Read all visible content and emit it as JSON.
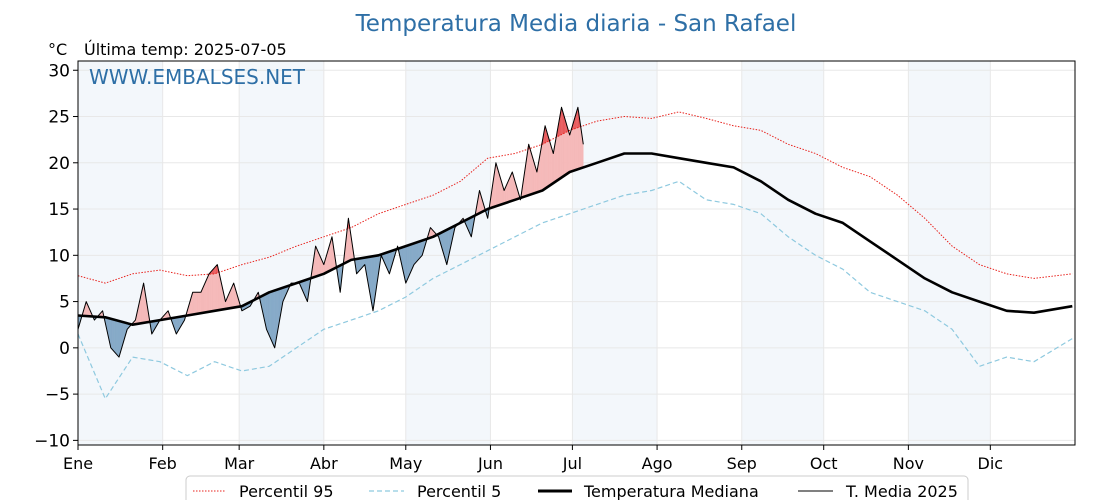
{
  "chart_data": {
    "type": "line",
    "title": "Temperatura Media diaria - San Rafael",
    "unit_label": "°C",
    "last_temp_label": "Última temp: 2025-07-05",
    "watermark": "WWW.EMBALSES.NET",
    "ylim": [
      -10.5,
      31
    ],
    "yticks": [
      "30",
      "25",
      "20",
      "15",
      "10",
      "5",
      "0",
      "−5",
      "−10"
    ],
    "ytick_values": [
      30,
      25,
      20,
      15,
      10,
      5,
      0,
      -5,
      -10
    ],
    "months": [
      "Ene",
      "Feb",
      "Mar",
      "Abr",
      "May",
      "Jun",
      "Jul",
      "Ago",
      "Sep",
      "Oct",
      "Nov",
      "Dic"
    ],
    "month_start_days": [
      0,
      31,
      59,
      90,
      120,
      151,
      181,
      212,
      243,
      273,
      304,
      334
    ],
    "grid": true,
    "legend_position": "bottom",
    "series": [
      {
        "name": "Percentil 95",
        "color": "#e8231e",
        "style": "dotted",
        "x": [
          0,
          10,
          20,
          30,
          40,
          50,
          60,
          70,
          80,
          90,
          100,
          110,
          120,
          130,
          140,
          150,
          160,
          170,
          180,
          190,
          200,
          210,
          220,
          230,
          240,
          250,
          260,
          270,
          280,
          290,
          300,
          310,
          320,
          330,
          340,
          350,
          364
        ],
        "values": [
          7.8,
          7,
          8,
          8.4,
          7.8,
          8,
          9,
          9.8,
          11,
          12,
          13,
          14.5,
          15.5,
          16.5,
          18,
          20.5,
          21,
          22,
          23.5,
          24.5,
          25,
          24.8,
          25.5,
          24.8,
          24,
          23.5,
          22,
          21,
          19.5,
          18.5,
          16.5,
          14,
          11,
          9,
          8,
          7.5,
          8
        ]
      },
      {
        "name": "Percentil 5",
        "color": "#8ec9df",
        "style": "dashed",
        "x": [
          0,
          10,
          20,
          30,
          40,
          50,
          60,
          70,
          80,
          90,
          100,
          110,
          120,
          130,
          140,
          150,
          160,
          170,
          180,
          190,
          200,
          210,
          220,
          230,
          240,
          250,
          260,
          270,
          280,
          290,
          300,
          310,
          320,
          330,
          340,
          350,
          364
        ],
        "values": [
          1.5,
          -5.5,
          -1,
          -1.5,
          -3,
          -1.5,
          -2.5,
          -2,
          0,
          2,
          3,
          4,
          5.5,
          7.5,
          9,
          10.5,
          12,
          13.5,
          14.5,
          15.5,
          16.5,
          17,
          18,
          16,
          15.5,
          14.5,
          12,
          10,
          8.5,
          6,
          5,
          4,
          2,
          -2,
          -1,
          -1.5,
          1
        ]
      },
      {
        "name": "Temperatura Mediana",
        "color": "#000000",
        "style": "solid-thick",
        "x": [
          0,
          10,
          20,
          30,
          40,
          50,
          60,
          70,
          80,
          90,
          100,
          110,
          120,
          130,
          140,
          150,
          160,
          170,
          180,
          190,
          200,
          210,
          220,
          230,
          240,
          250,
          260,
          270,
          280,
          290,
          300,
          310,
          320,
          330,
          340,
          350,
          364
        ],
        "values": [
          3.5,
          3.3,
          2.5,
          3,
          3.5,
          4,
          4.5,
          6,
          7,
          8,
          9.5,
          10,
          11,
          12,
          13.5,
          15,
          16,
          17,
          19,
          20,
          21,
          21,
          20.5,
          20,
          19.5,
          18,
          16,
          14.5,
          13.5,
          11.5,
          9.5,
          7.5,
          6,
          5,
          4,
          3.8,
          4.5
        ]
      },
      {
        "name": "T. Media 2025",
        "color": "#000000",
        "style": "solid-thin",
        "x": [
          0,
          3,
          6,
          9,
          12,
          15,
          18,
          21,
          24,
          27,
          30,
          33,
          36,
          39,
          42,
          45,
          48,
          51,
          54,
          57,
          60,
          63,
          66,
          69,
          72,
          75,
          78,
          81,
          84,
          87,
          90,
          93,
          96,
          99,
          102,
          105,
          108,
          111,
          114,
          117,
          120,
          123,
          126,
          129,
          132,
          135,
          138,
          141,
          144,
          147,
          150,
          153,
          156,
          159,
          162,
          165,
          168,
          171,
          174,
          177,
          180,
          183,
          185
        ],
        "values": [
          2,
          5,
          3,
          4,
          0,
          -1,
          2,
          3,
          7,
          1.5,
          3,
          4,
          1.5,
          3,
          6,
          6,
          8,
          9,
          5,
          7,
          4,
          4.5,
          6,
          2,
          0,
          5,
          7,
          7,
          5,
          11,
          9,
          12,
          6,
          14,
          8,
          9,
          4,
          10,
          8,
          11,
          7,
          9,
          10,
          13,
          12,
          9,
          13,
          14,
          12,
          17,
          14,
          20,
          17,
          19,
          16,
          22,
          19,
          24,
          21,
          26,
          23,
          26,
          22
        ]
      }
    ],
    "shading": {
      "above_median_color": "#f5b9b9",
      "above_p95_color": "#e8585a",
      "below_median_color": "#86aac8"
    }
  },
  "legend": {
    "p95": "Percentil 95",
    "p5": "Percentil 5",
    "median": "Temperatura Mediana",
    "t2025": "T. Media 2025"
  }
}
